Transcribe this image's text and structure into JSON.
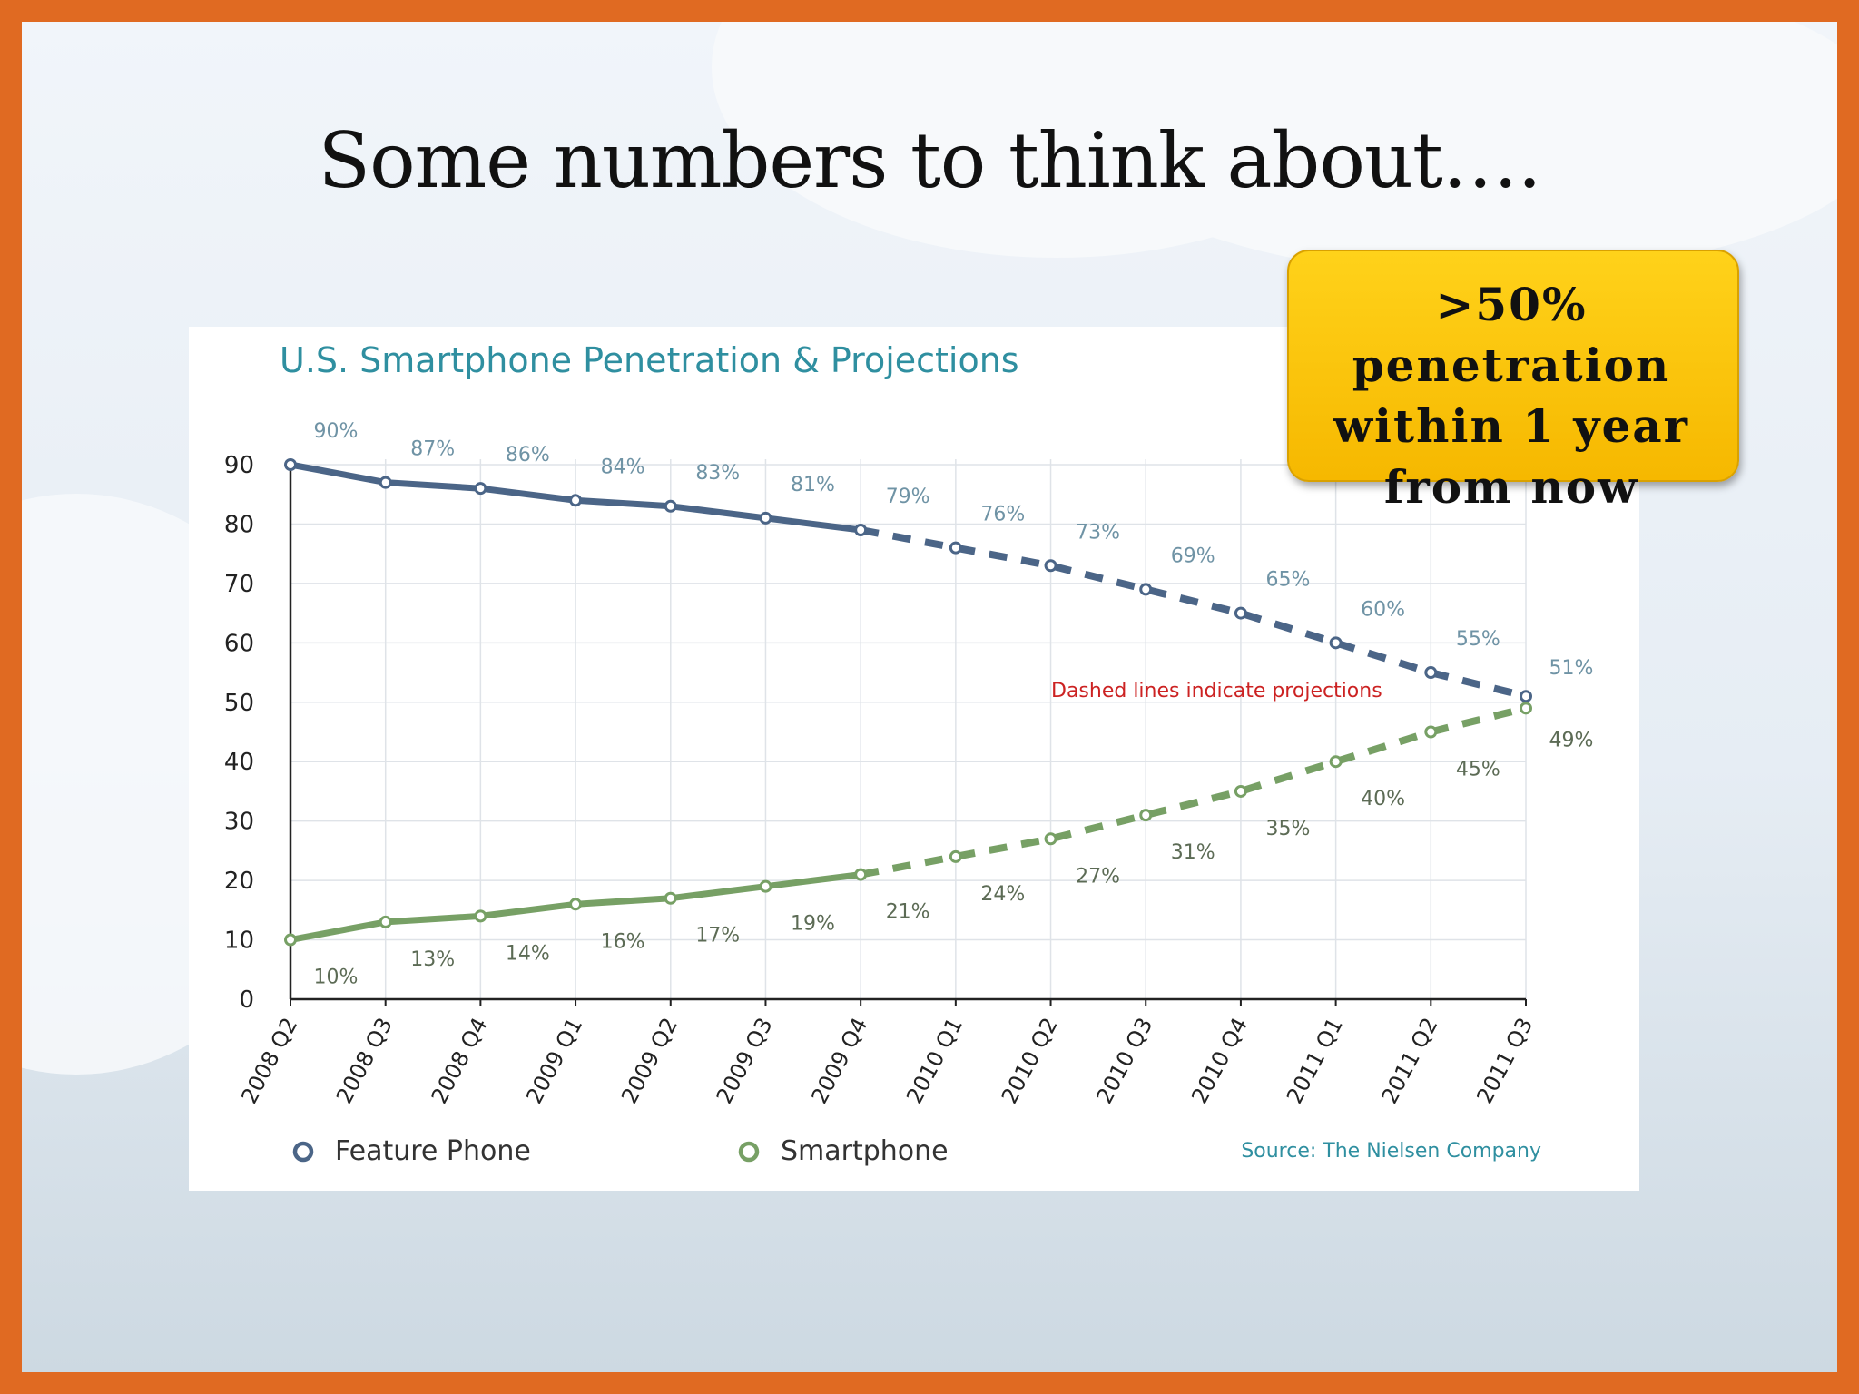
{
  "slide": {
    "title": "Some numbers to think about….",
    "callout": ">50%\npenetration\nwithin 1 year\nfrom now"
  },
  "colors": {
    "border": "#e06a22",
    "feature_phone": "#4b6587",
    "smartphone": "#77a065",
    "chart_title": "#2f8fa0",
    "annotation": "#cc2222",
    "callout_fill": "#ffc90e"
  },
  "chart_data": {
    "type": "line",
    "title": "U.S. Smartphone Penetration & Projections",
    "categories": [
      "2008 Q2",
      "2008 Q3",
      "2008 Q4",
      "2009 Q1",
      "2009 Q2",
      "2009 Q3",
      "2009 Q4",
      "2010 Q1",
      "2010 Q2",
      "2010 Q3",
      "2010 Q4",
      "2011 Q1",
      "2011 Q2",
      "2011 Q3"
    ],
    "series": [
      {
        "name": "Feature Phone",
        "values": [
          90,
          87,
          86,
          84,
          83,
          81,
          79,
          76,
          73,
          69,
          65,
          60,
          55,
          51
        ],
        "data_labels": [
          "90%",
          "87%",
          "86%",
          "84%",
          "83%",
          "81%",
          "79%",
          "76%",
          "73%",
          "69%",
          "65%",
          "60%",
          "55%",
          "51%"
        ],
        "color": "#4b6587"
      },
      {
        "name": "Smartphone",
        "values": [
          10,
          13,
          14,
          16,
          17,
          19,
          21,
          24,
          27,
          31,
          35,
          40,
          45,
          49
        ],
        "data_labels": [
          "10%",
          "13%",
          "14%",
          "16%",
          "17%",
          "19%",
          "21%",
          "24%",
          "27%",
          "31%",
          "35%",
          "40%",
          "45%",
          "49%"
        ],
        "color": "#77a065"
      }
    ],
    "projection_start_index": 6,
    "ylim": [
      0,
      90
    ],
    "yticks": [
      0,
      10,
      20,
      30,
      40,
      50,
      60,
      70,
      80,
      90
    ],
    "grid": true,
    "legend": "bottom-left",
    "annotation": "Dashed lines indicate projections",
    "source": "Source: The Nielsen Company"
  }
}
